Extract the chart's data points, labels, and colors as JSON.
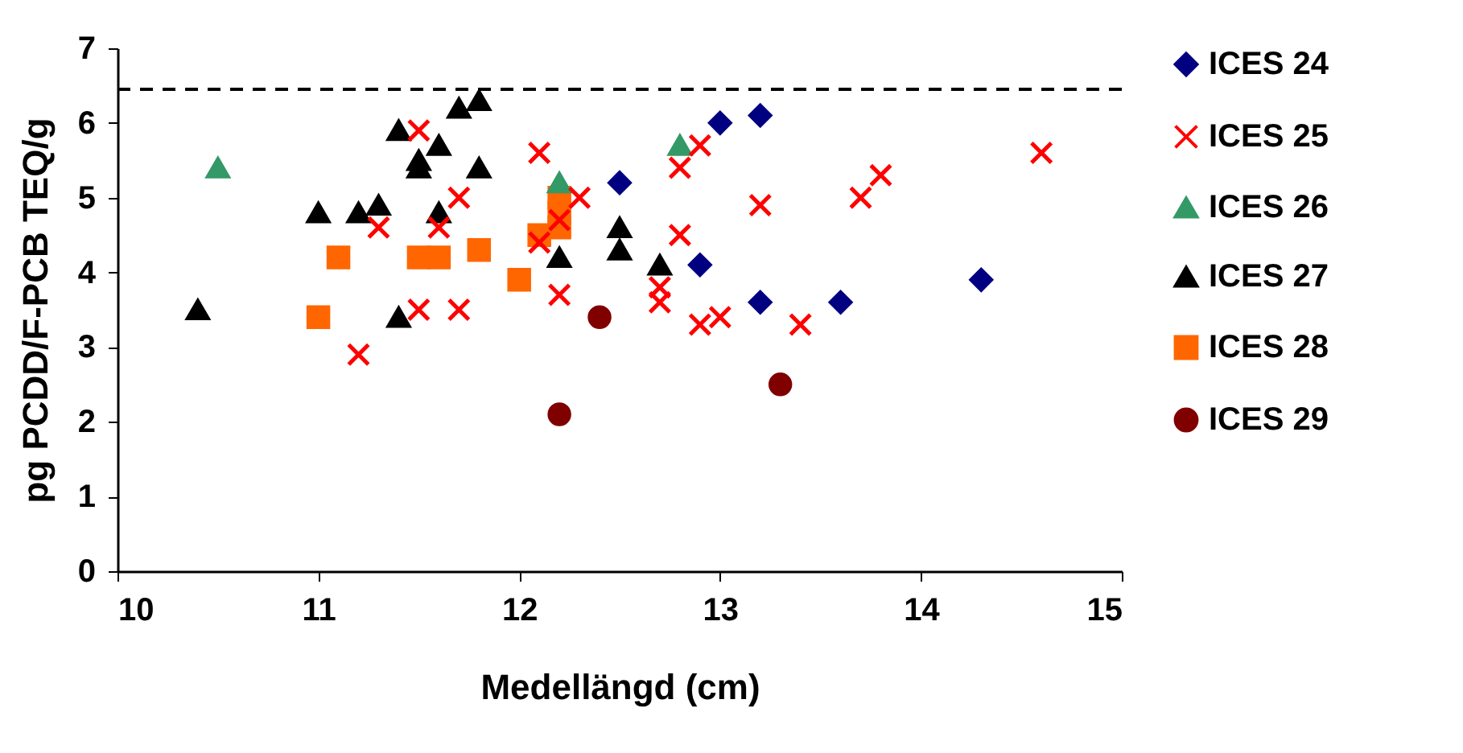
{
  "chart_data": {
    "type": "scatter",
    "xlabel": "Medellängd (cm)",
    "ylabel": "pg PCDD/F-PCB TEQ/g",
    "xlim": [
      10,
      15
    ],
    "xticks": [
      10,
      11,
      12,
      13,
      14,
      15
    ],
    "ylim": [
      0,
      7
    ],
    "yticks": [
      0,
      1,
      2,
      3,
      4,
      5,
      6,
      7
    ],
    "grid": false,
    "legend": "right",
    "ref_lines": [
      {
        "axis": "y",
        "value": 6.45,
        "color": "#000000",
        "line_style": "dashed"
      }
    ],
    "series": [
      {
        "name": "ICES 24",
        "color": "#000080",
        "marker": "diamond",
        "x": [
          12.5,
          12.9,
          13.0,
          13.2,
          13.2,
          13.6,
          14.3
        ],
        "values": [
          5.2,
          4.1,
          6.0,
          6.1,
          3.6,
          3.6,
          3.9
        ]
      },
      {
        "name": "ICES 25",
        "color": "#ff0000",
        "marker": "cross",
        "x": [
          11.2,
          11.3,
          11.5,
          11.5,
          11.6,
          11.7,
          11.7,
          12.1,
          12.1,
          12.2,
          12.2,
          12.3,
          12.7,
          12.7,
          12.8,
          12.8,
          12.9,
          12.9,
          13.0,
          13.2,
          13.4,
          13.7,
          13.8,
          14.6
        ],
        "values": [
          2.9,
          4.6,
          5.9,
          3.5,
          4.6,
          5.0,
          3.5,
          5.6,
          4.4,
          4.7,
          3.7,
          5.0,
          3.6,
          3.8,
          5.4,
          4.5,
          5.7,
          3.3,
          3.4,
          4.9,
          3.3,
          5.0,
          5.3,
          5.6
        ]
      },
      {
        "name": "ICES 26",
        "color": "#339966",
        "marker": "triangle",
        "x": [
          10.5,
          12.2,
          12.8
        ],
        "values": [
          5.4,
          5.2,
          5.7
        ]
      },
      {
        "name": "ICES 27",
        "color": "#000000",
        "marker": "triangle",
        "x": [
          10.4,
          11.0,
          11.2,
          11.3,
          11.4,
          11.4,
          11.5,
          11.5,
          11.6,
          11.6,
          11.7,
          11.8,
          11.8,
          12.2,
          12.5,
          12.5,
          12.7
        ],
        "values": [
          3.5,
          4.8,
          4.8,
          4.9,
          5.9,
          3.4,
          5.5,
          5.4,
          5.7,
          4.8,
          6.2,
          6.3,
          5.4,
          4.2,
          4.6,
          4.3,
          4.1
        ]
      },
      {
        "name": "ICES 28",
        "color": "#ff6600",
        "marker": "square",
        "x": [
          11.0,
          11.1,
          11.5,
          11.6,
          11.8,
          12.0,
          12.1,
          12.2,
          12.2,
          12.2
        ],
        "values": [
          3.4,
          4.2,
          4.2,
          4.2,
          4.3,
          3.9,
          4.5,
          5.0,
          4.8,
          4.6
        ]
      },
      {
        "name": "ICES 29",
        "color": "#800000",
        "marker": "circle",
        "x": [
          12.2,
          12.4,
          13.3
        ],
        "values": [
          2.1,
          3.4,
          2.5
        ]
      }
    ]
  }
}
